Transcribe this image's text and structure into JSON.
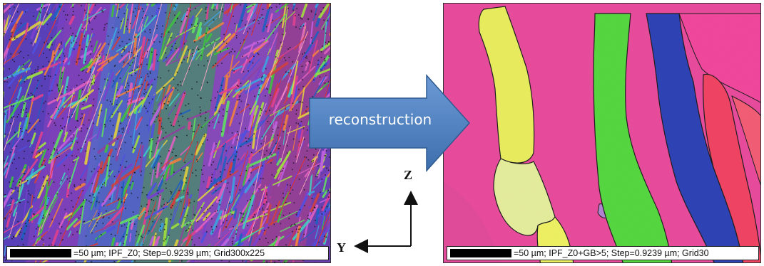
{
  "figure": {
    "left_panel": {
      "map_type": "IPF_Z0",
      "scale_text": "=50 µm; IPF_Z0; Step=0.9239 µm; Grid300x225"
    },
    "right_panel": {
      "map_type": "IPF_Z0+GB>5",
      "scale_text": "=50 µm; IPF_Z0+GB>5; Step=0.9239 µm; Grid30"
    },
    "arrow": {
      "label": "reconstruction",
      "color": "#4a7fbd"
    },
    "axes": {
      "vertical_label": "Z",
      "horizontal_label": "Y"
    },
    "grain_colors": {
      "background": "#e8489a",
      "yellow": "#e8ec5a",
      "pale_yellow": "#e4ec9a",
      "green": "#52d63c",
      "blue": "#2a3fb4",
      "pink_right": "#f0449a",
      "red_pink": "#f04060",
      "purple": "#b080d0"
    }
  }
}
